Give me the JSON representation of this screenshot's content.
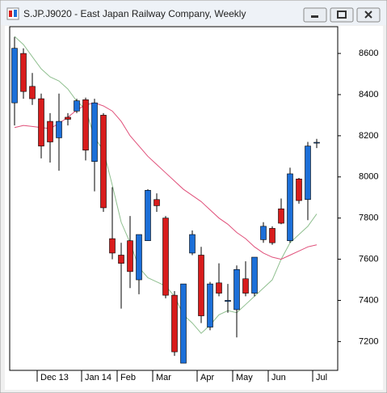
{
  "window": {
    "title": "S.JP.J9020 - East Japan Railway Company, Weekly"
  },
  "chart_data": {
    "type": "candlestick",
    "categories": [
      null,
      null,
      null,
      "Dec 13",
      null,
      null,
      null,
      null,
      "Jan 14",
      null,
      null,
      null,
      "Feb",
      null,
      null,
      null,
      "Mar",
      null,
      null,
      null,
      null,
      "Apr",
      null,
      null,
      null,
      "May",
      null,
      null,
      null,
      "Jun",
      null,
      null,
      null,
      null,
      "Jul"
    ],
    "open": [
      8360,
      8600,
      8440,
      8380,
      8270,
      8190,
      8290,
      8320,
      8375,
      8075,
      8300,
      7700,
      7620,
      7690,
      7500,
      7690,
      7890,
      7800,
      7425,
      7095,
      7630,
      7620,
      7270,
      7485,
      7395,
      7355,
      7505,
      7435,
      7695,
      7750,
      7845,
      7690,
      7990,
      7890,
      8165
    ],
    "high": [
      8680,
      8625,
      8505,
      8405,
      8310,
      8405,
      8310,
      8380,
      8385,
      8380,
      8310,
      7950,
      7680,
      7810,
      7720,
      7940,
      7920,
      7810,
      7445,
      7480,
      7740,
      7660,
      7490,
      7580,
      7480,
      7570,
      7590,
      7610,
      7780,
      7760,
      7895,
      8045,
      7995,
      8170,
      8185
    ],
    "low": [
      8250,
      8380,
      8350,
      8090,
      8070,
      8030,
      8250,
      8310,
      8080,
      7930,
      7830,
      7600,
      7360,
      7460,
      7430,
      7690,
      7830,
      7410,
      7130,
      7095,
      7620,
      7290,
      7255,
      7420,
      7340,
      7220,
      7420,
      7420,
      7680,
      7670,
      7770,
      7680,
      7870,
      7790,
      8140
    ],
    "close": [
      8625,
      8415,
      8380,
      8150,
      8170,
      8270,
      8280,
      8370,
      8130,
      8360,
      7850,
      7630,
      7580,
      7540,
      7720,
      7935,
      7860,
      7425,
      7150,
      7480,
      7720,
      7325,
      7480,
      7435,
      7400,
      7550,
      7435,
      7610,
      7760,
      7680,
      7775,
      8015,
      7885,
      8150,
      8168
    ],
    "up_color": "#1c6fd8",
    "down_color": "#d81c1c",
    "lines": [
      {
        "color": "#8fbf8f",
        "values": [
          8683,
          8643,
          8584,
          8525,
          8486,
          8466,
          8427,
          8368,
          8330,
          8190,
          8130,
          7960,
          7780,
          7680,
          7560,
          7510,
          7490,
          7470,
          7420,
          7330,
          7290,
          7240,
          7280,
          7330,
          7350,
          7340,
          7380,
          7420,
          7460,
          7500,
          7600,
          7680,
          7720,
          7760,
          7820
        ]
      },
      {
        "color": "#e0507a",
        "values": [
          8240,
          8250,
          8245,
          8240,
          8235,
          8260,
          8290,
          8325,
          8350,
          8360,
          8345,
          8320,
          8270,
          8200,
          8150,
          8100,
          8060,
          8020,
          7980,
          7940,
          7910,
          7880,
          7840,
          7800,
          7770,
          7730,
          7700,
          7660,
          7630,
          7610,
          7600,
          7620,
          7640,
          7660,
          7670
        ]
      }
    ],
    "ylim": [
      7060,
      8730
    ],
    "yticks": [
      7200,
      7400,
      7600,
      7800,
      8000,
      8200,
      8400,
      8600
    ]
  }
}
